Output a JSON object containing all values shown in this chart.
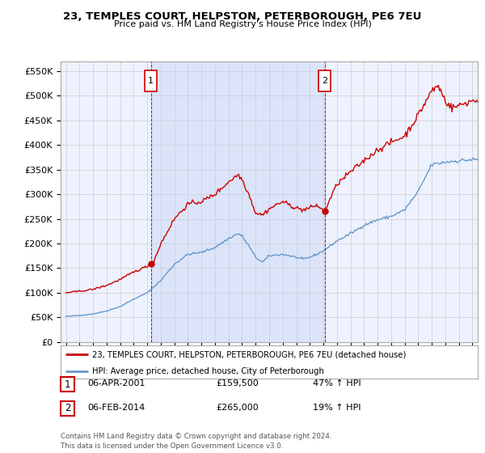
{
  "title": "23, TEMPLES COURT, HELPSTON, PETERBOROUGH, PE6 7EU",
  "subtitle": "Price paid vs. HM Land Registry's House Price Index (HPI)",
  "legend_line1": "23, TEMPLES COURT, HELPSTON, PETERBOROUGH, PE6 7EU (detached house)",
  "legend_line2": "HPI: Average price, detached house, City of Peterborough",
  "transaction1_label": "1",
  "transaction1_date": "06-APR-2001",
  "transaction1_price": "£159,500",
  "transaction1_hpi": "47% ↑ HPI",
  "transaction2_label": "2",
  "transaction2_date": "06-FEB-2014",
  "transaction2_price": "£265,000",
  "transaction2_hpi": "19% ↑ HPI",
  "footer": "Contains HM Land Registry data © Crown copyright and database right 2024.\nThis data is licensed under the Open Government Licence v3.0.",
  "red_color": "#cc0000",
  "blue_color": "#6699cc",
  "shade_color": "#ddeeff",
  "background_color": "#ffffff",
  "grid_color": "#cccccc",
  "plot_bg_color": "#eef2ff",
  "ylim": [
    0,
    570000
  ],
  "yticks": [
    0,
    50000,
    100000,
    150000,
    200000,
    250000,
    300000,
    350000,
    400000,
    450000,
    500000,
    550000
  ],
  "ytick_labels": [
    "£0",
    "£50K",
    "£100K",
    "£150K",
    "£200K",
    "£250K",
    "£300K",
    "£350K",
    "£400K",
    "£450K",
    "£500K",
    "£550K"
  ],
  "transaction1_x": 2001.27,
  "transaction1_y": 159500,
  "transaction2_x": 2014.09,
  "transaction2_y": 265000,
  "xlim_start": 1994.6,
  "xlim_end": 2025.4
}
